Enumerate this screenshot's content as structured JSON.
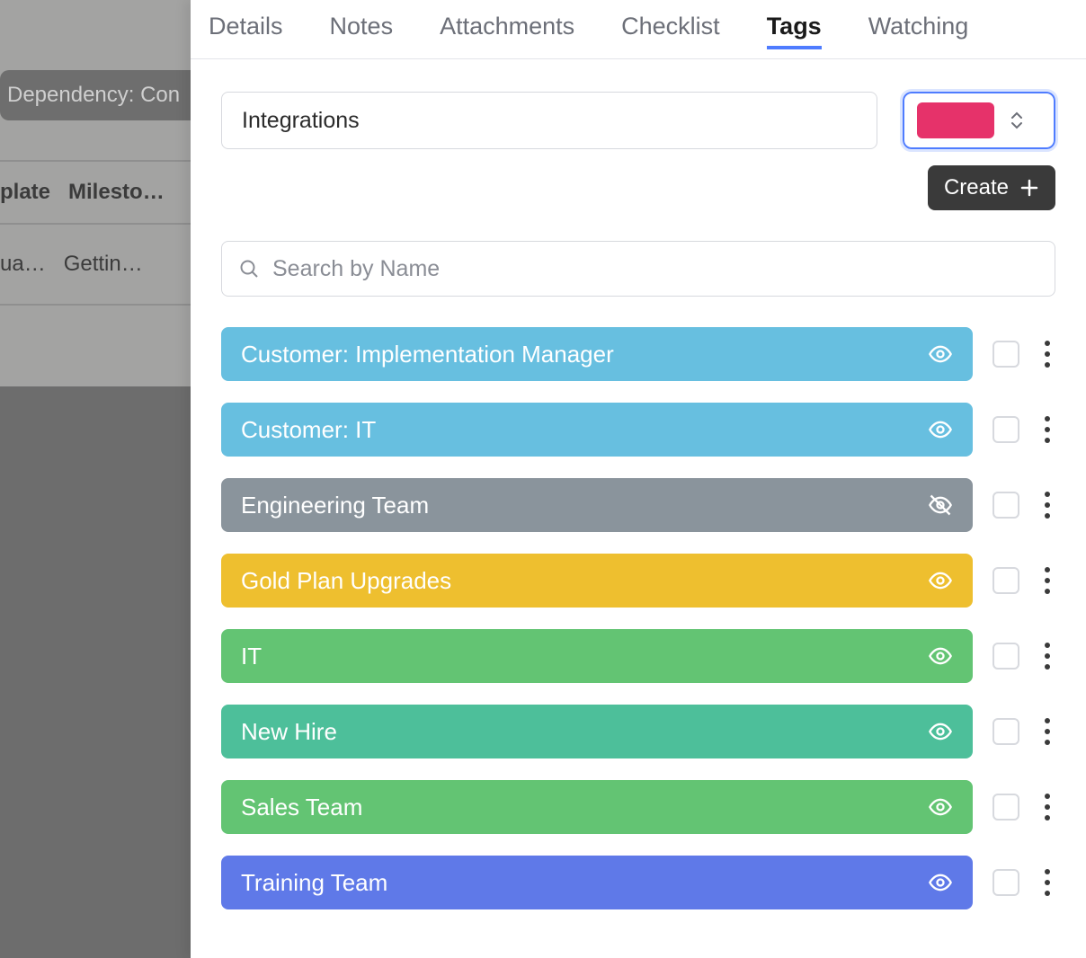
{
  "background": {
    "pill_text": "Dependency: Con",
    "row1_cells": [
      "plate",
      "Milesto…"
    ],
    "row2_cells": [
      "ua…",
      "Gettin…"
    ]
  },
  "tabs": {
    "items": [
      "Details",
      "Notes",
      "Attachments",
      "Checklist",
      "Tags",
      "Watching"
    ],
    "active_index": 4
  },
  "create": {
    "name_value": "Integrations",
    "swatch_color": "#e6326a",
    "button_label": "Create"
  },
  "search": {
    "placeholder": "Search by Name"
  },
  "tags": [
    {
      "label": "Customer: Implementation Manager",
      "color": "#67bfe0",
      "visible": true
    },
    {
      "label": "Customer: IT",
      "color": "#67bfe0",
      "visible": true
    },
    {
      "label": "Engineering Team",
      "color": "#8a949c",
      "visible": false
    },
    {
      "label": "Gold Plan Upgrades",
      "color": "#eebf2f",
      "visible": true
    },
    {
      "label": "IT",
      "color": "#63c473",
      "visible": true
    },
    {
      "label": "New Hire",
      "color": "#4dbf9a",
      "visible": true
    },
    {
      "label": "Sales Team",
      "color": "#63c473",
      "visible": true
    },
    {
      "label": "Training Team",
      "color": "#5f79e8",
      "visible": true
    }
  ]
}
